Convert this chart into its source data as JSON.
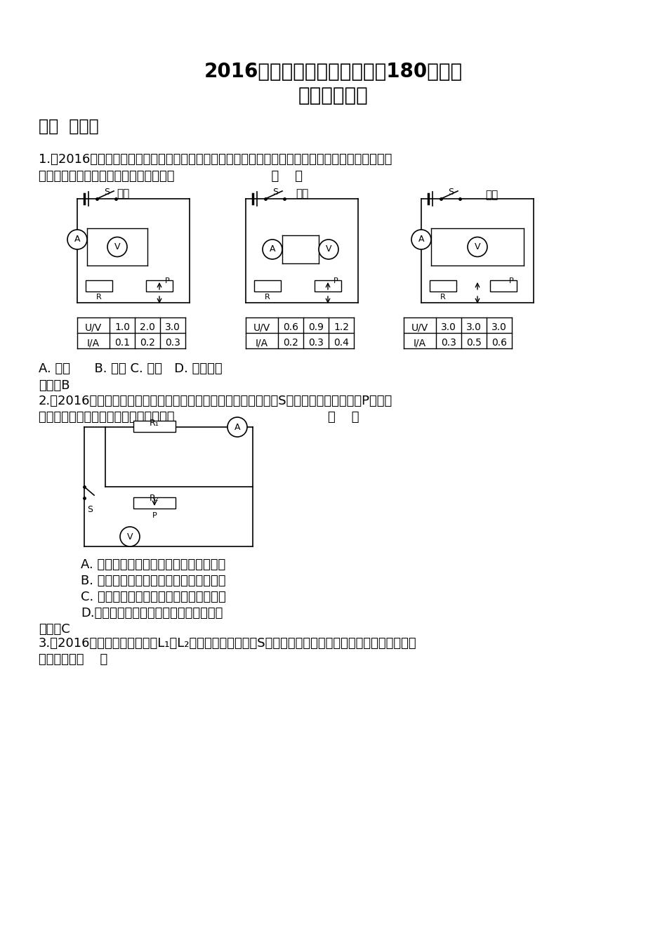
{
  "title1": "2016年全国各地中考物理试题180套汇编",
  "title2": "《欧姆定律》",
  "section1": "一、  选择题",
  "q1_text1": "1.（2016济宁）小满、小希扣小梦按各自设计的电路图进行实验，并将实验数据记录在表格中，如图",
  "q1_text2": "所示，其中电路图与实验数据不对应的是                        （    ）",
  "label_xiaoman": "小满",
  "label_xiaox": "小希",
  "label_xiaomeng": "小梦",
  "table1_header": [
    "U/V",
    "1.0",
    "2.0",
    "3.0"
  ],
  "table1_row2": [
    "I/A",
    "0.1",
    "0.2",
    "0.3"
  ],
  "table2_header": [
    "U/V",
    "0.6",
    "0.9",
    "1.2"
  ],
  "table2_row2": [
    "I/A",
    "0.2",
    "0.3",
    "0.4"
  ],
  "table3_header": [
    "U/V",
    "3.0",
    "3.0",
    "3.0"
  ],
  "table3_row2": [
    "I/A",
    "0.3",
    "0.5",
    "0.6"
  ],
  "q1_options": "A. 小满      B. 小希 C. 小梦   D. 都不对应",
  "q1_answer": "答案：B",
  "q2_text1": "2.（2016滨州）在如图所示的电路中，电源电压保持不变，当开关S闭合，滑动变阻器滑片P向右移",
  "q2_text2": "动时，电流表和电压表示数的变化分别为                                      （    ）",
  "q2_optionA": "A. 电流表的示数变小，电压表的示数变大",
  "q2_optionB": "B. 电流表的示数变大，电压表的示数变小",
  "q2_optionC": "C. 电流表的示数变小，电压表的示数不变",
  "q2_optionD": "D.电流表的示数变小，电压表的示数变小",
  "q2_answer": "答案：C",
  "q3_text": "3.（2016福州）如图所示，灯L₁、L₂完全相同，闭合开关S，只有一盏灯亮，且只有一个电表有示数，其",
  "q3_text2": "故障可能是（    ）",
  "bg_color": "#ffffff",
  "text_color": "#000000"
}
